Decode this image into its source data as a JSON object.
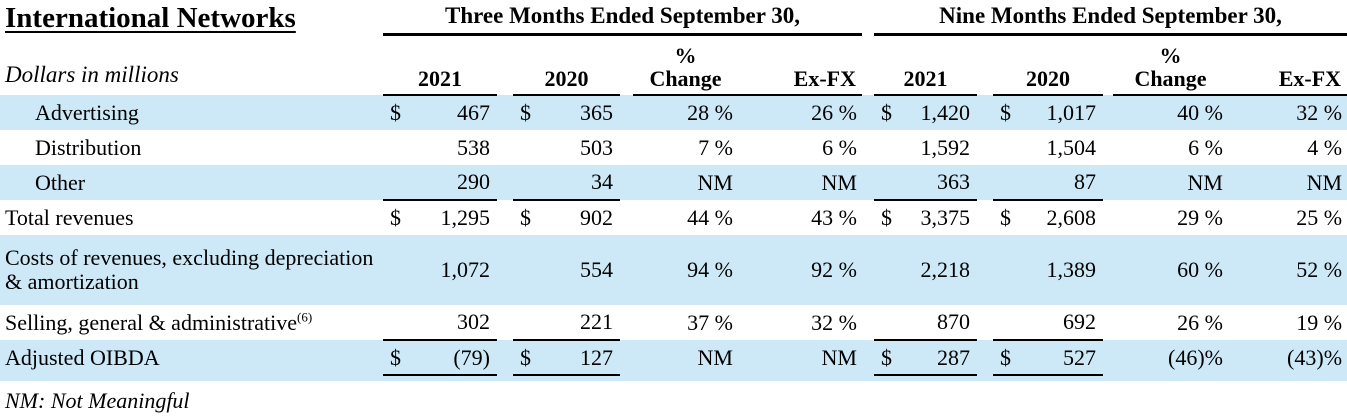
{
  "title": "International Networks",
  "subtitle": "Dollars in millions",
  "footnote": "NM: Not Meaningful",
  "groups": [
    {
      "label": "Three Months Ended September 30,"
    },
    {
      "label": "Nine Months Ended September 30,"
    }
  ],
  "columns": {
    "y2021": "2021",
    "y2020": "2020",
    "pct": "%",
    "change": "Change",
    "exfx": "Ex-FX"
  },
  "colors": {
    "row_shade": "#cde8f6",
    "rule": "#000000",
    "text": "#000000"
  },
  "rows": [
    {
      "label": "Advertising",
      "indent": true,
      "shaded": true,
      "rule_below": false,
      "cells": [
        {
          "d": "$",
          "v": "467"
        },
        {
          "d": "$",
          "v": "365"
        },
        "28 %",
        "26 %",
        {
          "d": "$",
          "v": "1,420"
        },
        {
          "d": "$",
          "v": "1,017"
        },
        "40 %",
        "32 %"
      ]
    },
    {
      "label": "Distribution",
      "indent": true,
      "shaded": false,
      "rule_below": false,
      "cells": [
        {
          "v": "538"
        },
        {
          "v": "503"
        },
        "7 %",
        "6 %",
        {
          "v": "1,592"
        },
        {
          "v": "1,504"
        },
        "6 %",
        "4 %"
      ]
    },
    {
      "label": "Other",
      "indent": true,
      "shaded": true,
      "rule_below": true,
      "cells": [
        {
          "v": "290"
        },
        {
          "v": "34"
        },
        "NM",
        "NM",
        {
          "v": "363"
        },
        {
          "v": "87"
        },
        "NM",
        "NM"
      ]
    },
    {
      "label": "Total revenues",
      "indent": false,
      "shaded": false,
      "rule_below": false,
      "cells": [
        {
          "d": "$",
          "v": "1,295"
        },
        {
          "d": "$",
          "v": "902"
        },
        "44 %",
        "43 %",
        {
          "d": "$",
          "v": "3,375"
        },
        {
          "d": "$",
          "v": "2,608"
        },
        "29 %",
        "25 %"
      ]
    },
    {
      "label": "Costs of revenues, excluding depreciation & amortization",
      "indent": false,
      "shaded": true,
      "rule_below": false,
      "tall": true,
      "cells": [
        {
          "v": "1,072"
        },
        {
          "v": "554"
        },
        "94 %",
        "92 %",
        {
          "v": "2,218"
        },
        {
          "v": "1,389"
        },
        "60 %",
        "52 %"
      ]
    },
    {
      "label": "Selling, general & administrative",
      "sup": "(6)",
      "indent": false,
      "shaded": false,
      "rule_below": true,
      "cells": [
        {
          "v": "302"
        },
        {
          "v": "221"
        },
        "37 %",
        "32 %",
        {
          "v": "870"
        },
        {
          "v": "692"
        },
        "26 %",
        "19 %"
      ]
    },
    {
      "label": "Adjusted OIBDA",
      "indent": false,
      "shaded": true,
      "rule_below": true,
      "cells": [
        {
          "d": "$",
          "v": "(79)"
        },
        {
          "d": "$",
          "v": "127"
        },
        "NM",
        "NM",
        {
          "d": "$",
          "v": "287"
        },
        {
          "d": "$",
          "v": "527"
        },
        "(46)%",
        "(43)%"
      ]
    }
  ]
}
